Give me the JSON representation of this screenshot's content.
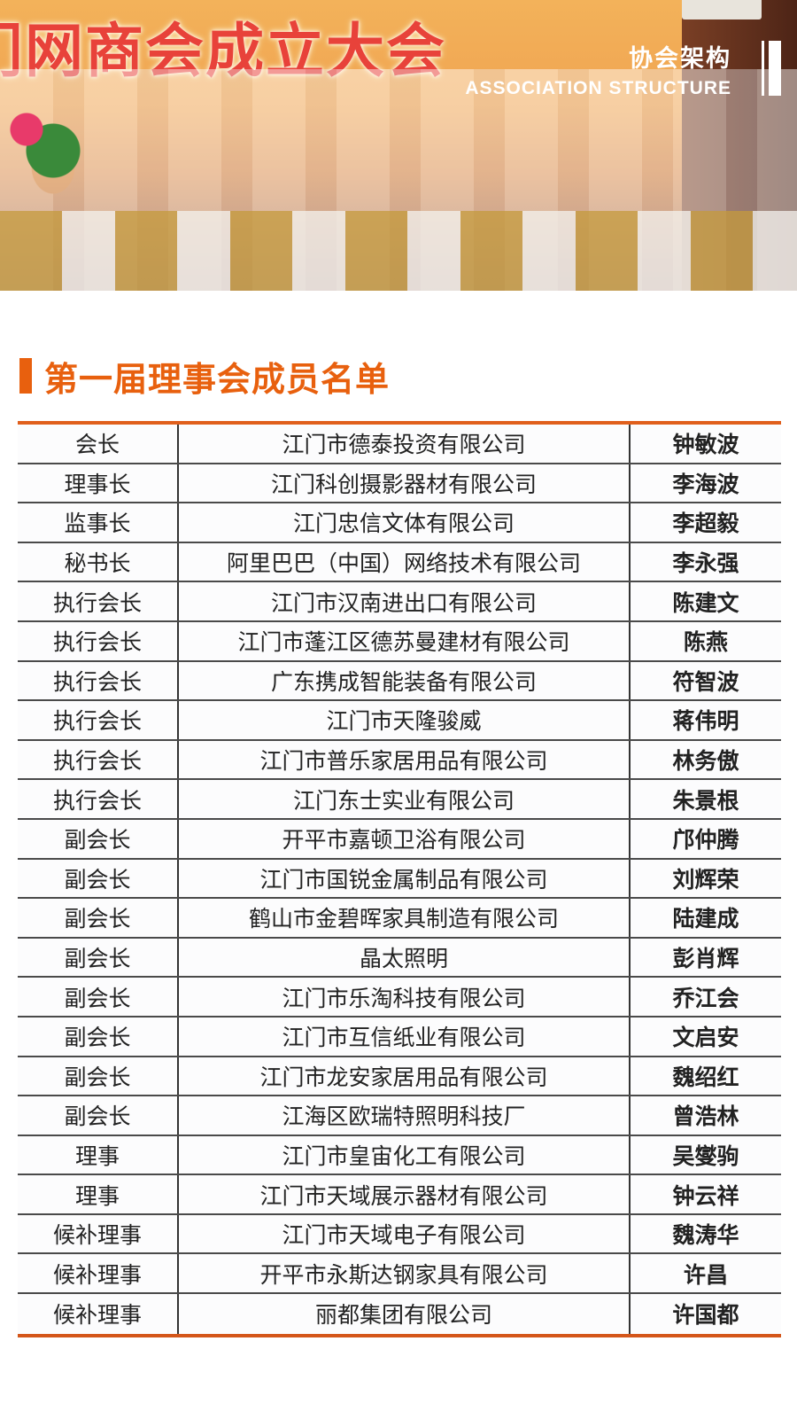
{
  "header": {
    "photo_banner": "门网商会成立大会",
    "title_cn": "协会架构",
    "title_en": "ASSOCIATION STRUCTURE"
  },
  "section": {
    "title": "第一届理事会成员名单"
  },
  "colors": {
    "accent": "#e8600e"
  },
  "members": [
    [
      "会长",
      "江门市德泰投资有限公司",
      "钟敏波"
    ],
    [
      "理事长",
      "江门科创摄影器材有限公司",
      "李海波"
    ],
    [
      "监事长",
      "江门忠信文体有限公司",
      "李超毅"
    ],
    [
      "秘书长",
      "阿里巴巴（中国）网络技术有限公司",
      "李永强"
    ],
    [
      "执行会长",
      "江门市汉南进出口有限公司",
      "陈建文"
    ],
    [
      "执行会长",
      "江门市蓬江区德苏曼建材有限公司",
      "陈燕"
    ],
    [
      "执行会长",
      "广东携成智能装备有限公司",
      "符智波"
    ],
    [
      "执行会长",
      "江门市天隆骏威",
      "蒋伟明"
    ],
    [
      "执行会长",
      "江门市普乐家居用品有限公司",
      "林务傲"
    ],
    [
      "执行会长",
      "江门东士实业有限公司",
      "朱景根"
    ],
    [
      "副会长",
      "开平市嘉顿卫浴有限公司",
      "邝仲腾"
    ],
    [
      "副会长",
      "江门市国锐金属制品有限公司",
      "刘辉荣"
    ],
    [
      "副会长",
      "鹤山市金碧晖家具制造有限公司",
      "陆建成"
    ],
    [
      "副会长",
      "晶太照明",
      "彭肖辉"
    ],
    [
      "副会长",
      "江门市乐淘科技有限公司",
      "乔江会"
    ],
    [
      "副会长",
      "江门市互信纸业有限公司",
      "文启安"
    ],
    [
      "副会长",
      "江门市龙安家居用品有限公司",
      "魏绍红"
    ],
    [
      "副会长",
      "江海区欧瑞特照明科技厂",
      "曾浩林"
    ],
    [
      "理事",
      "江门市皇宙化工有限公司",
      "吴燮驹"
    ],
    [
      "理事",
      "江门市天域展示器材有限公司",
      "钟云祥"
    ],
    [
      "候补理事",
      "江门市天域电子有限公司",
      "魏涛华"
    ],
    [
      "候补理事",
      "开平市永斯达钢家具有限公司",
      "许昌"
    ],
    [
      "候补理事",
      "丽都集团有限公司",
      "许国都"
    ]
  ]
}
